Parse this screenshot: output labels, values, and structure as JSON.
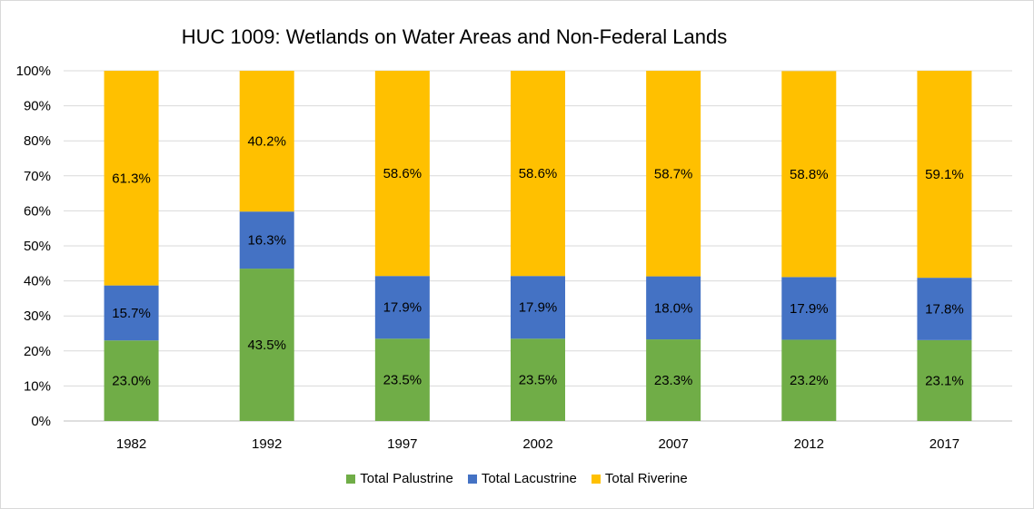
{
  "chart_data": {
    "type": "bar",
    "stacked": true,
    "title": "HUC 1009: Wetlands on Water Areas and Non-Federal Lands",
    "categories": [
      "1982",
      "1992",
      "1997",
      "2002",
      "2007",
      "2012",
      "2017"
    ],
    "yticks": [
      "0%",
      "10%",
      "20%",
      "30%",
      "40%",
      "50%",
      "60%",
      "70%",
      "80%",
      "90%",
      "100%"
    ],
    "ylim": [
      0,
      100
    ],
    "grid": true,
    "legend_position": "bottom",
    "series": [
      {
        "name": "Total Palustrine",
        "color": "#70ad47",
        "values": [
          23.0,
          43.5,
          23.5,
          23.5,
          23.3,
          23.2,
          23.1
        ],
        "labels": [
          "23.0%",
          "43.5%",
          "23.5%",
          "23.5%",
          "23.3%",
          "23.2%",
          "23.1%"
        ]
      },
      {
        "name": "Total Lacustrine",
        "color": "#4472c4",
        "values": [
          15.7,
          16.3,
          17.9,
          17.9,
          18.0,
          17.9,
          17.8
        ],
        "labels": [
          "15.7%",
          "16.3%",
          "17.9%",
          "17.9%",
          "18.0%",
          "17.9%",
          "17.8%"
        ]
      },
      {
        "name": "Total Riverine",
        "color": "#ffc000",
        "values": [
          61.3,
          40.2,
          58.6,
          58.6,
          58.7,
          58.8,
          59.1
        ],
        "labels": [
          "61.3%",
          "40.2%",
          "58.6%",
          "58.6%",
          "58.7%",
          "58.8%",
          "59.1%"
        ]
      }
    ]
  }
}
